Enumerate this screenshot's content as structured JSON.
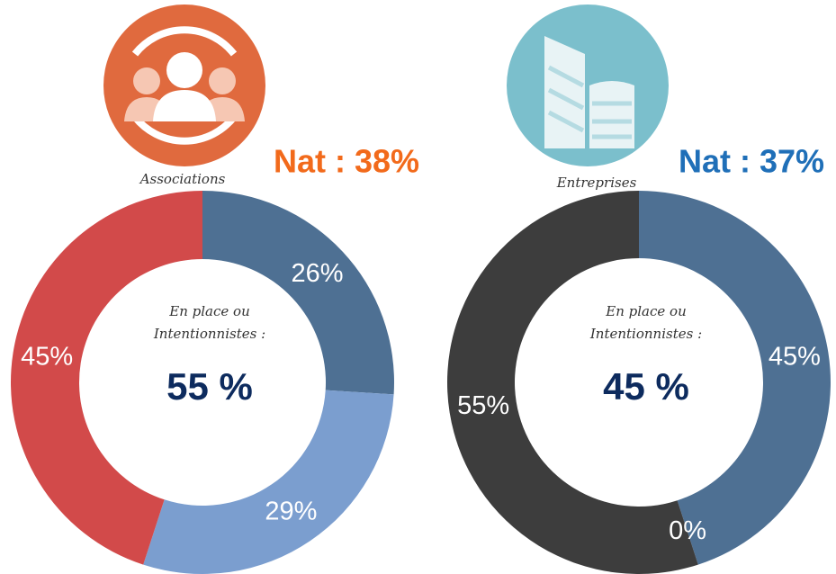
{
  "chart_data": [
    {
      "type": "donut",
      "title": "Nat : 38%",
      "title_color": "#f26a1b",
      "caption": "Associations",
      "center_lines": [
        "En place ou",
        "Intentionnistes :"
      ],
      "center_value": "55 %",
      "values": [
        26,
        29,
        45
      ],
      "value_labels": [
        "26%",
        "29%",
        "45%"
      ],
      "colors": [
        "#4e7093",
        "#7b9ecf",
        "#d24a4a"
      ]
    },
    {
      "type": "donut",
      "title": "Nat : 37%",
      "title_color": "#1f6fb8",
      "caption": "Entreprises",
      "center_lines": [
        "En place ou",
        "Intentionnistes :"
      ],
      "center_value": "45 %",
      "values": [
        45,
        0,
        55
      ],
      "value_labels": [
        "45%",
        "0%",
        "55%"
      ],
      "colors": [
        "#4e7093",
        "#7b9ecf",
        "#3d3d3d"
      ]
    }
  ]
}
